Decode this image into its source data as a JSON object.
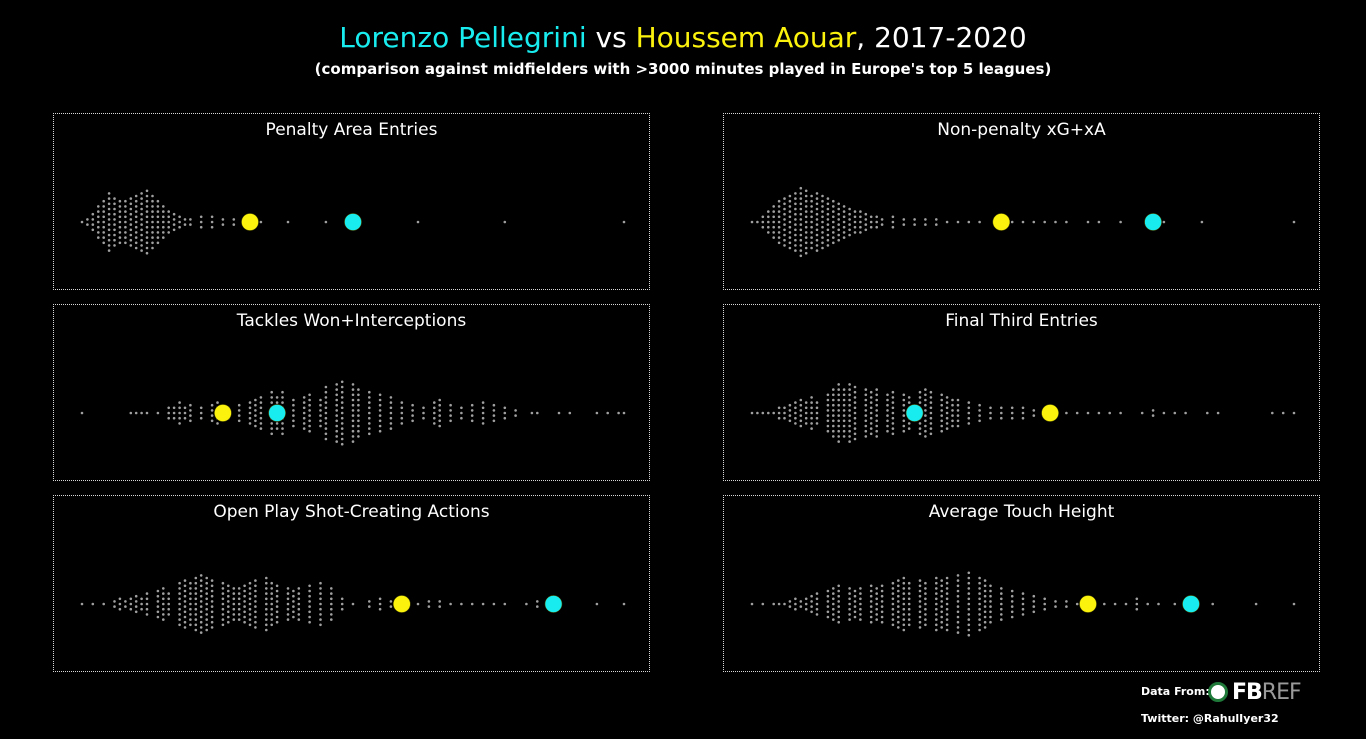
{
  "header": {
    "player1": "Lorenzo Pellegrini",
    "vs": " vs ",
    "player2": "Houssem Aouar",
    "suffix": ", 2017-2020",
    "subtitle": "(comparison against midfielders with >3000 minutes played in Europe's top 5 leagues)"
  },
  "colors": {
    "player1": "#19ecef",
    "player2": "#fbf20d",
    "dots": "#a0a0a0",
    "background": "#000000"
  },
  "chart_data": [
    {
      "type": "scatter",
      "title": "Penalty Area Entries",
      "player1_value": 0.5,
      "player2_value": 0.31,
      "distribution": [
        [
          0,
          1
        ],
        [
          0.01,
          2
        ],
        [
          0.02,
          4
        ],
        [
          0.03,
          7
        ],
        [
          0.04,
          9
        ],
        [
          0.05,
          12
        ],
        [
          0.06,
          10
        ],
        [
          0.07,
          9
        ],
        [
          0.08,
          9
        ],
        [
          0.09,
          10
        ],
        [
          0.1,
          11
        ],
        [
          0.11,
          12
        ],
        [
          0.12,
          13
        ],
        [
          0.13,
          11
        ],
        [
          0.14,
          9
        ],
        [
          0.15,
          7
        ],
        [
          0.16,
          5
        ],
        [
          0.17,
          4
        ],
        [
          0.18,
          3
        ],
        [
          0.19,
          2
        ],
        [
          0.2,
          2
        ],
        [
          0.22,
          3
        ],
        [
          0.24,
          3
        ],
        [
          0.26,
          2
        ],
        [
          0.28,
          2
        ],
        [
          0.3,
          1
        ],
        [
          0.33,
          1
        ],
        [
          0.38,
          1
        ],
        [
          0.45,
          1
        ],
        [
          0.62,
          1
        ],
        [
          0.78,
          1
        ],
        [
          1,
          1
        ]
      ]
    },
    {
      "type": "scatter",
      "title": "Non-penalty xG+xA",
      "player1_value": 0.74,
      "player2_value": 0.46,
      "distribution": [
        [
          0,
          1
        ],
        [
          0.01,
          1
        ],
        [
          0.02,
          3
        ],
        [
          0.03,
          5
        ],
        [
          0.04,
          7
        ],
        [
          0.05,
          9
        ],
        [
          0.06,
          10
        ],
        [
          0.07,
          11
        ],
        [
          0.08,
          12
        ],
        [
          0.09,
          14
        ],
        [
          0.1,
          13
        ],
        [
          0.11,
          11
        ],
        [
          0.12,
          12
        ],
        [
          0.13,
          11
        ],
        [
          0.14,
          10
        ],
        [
          0.15,
          9
        ],
        [
          0.16,
          8
        ],
        [
          0.17,
          7
        ],
        [
          0.18,
          6
        ],
        [
          0.19,
          5
        ],
        [
          0.2,
          5
        ],
        [
          0.21,
          4
        ],
        [
          0.22,
          3
        ],
        [
          0.23,
          3
        ],
        [
          0.24,
          2
        ],
        [
          0.26,
          3
        ],
        [
          0.28,
          2
        ],
        [
          0.3,
          2
        ],
        [
          0.32,
          2
        ],
        [
          0.34,
          2
        ],
        [
          0.36,
          1
        ],
        [
          0.38,
          1
        ],
        [
          0.4,
          1
        ],
        [
          0.42,
          1
        ],
        [
          0.48,
          1
        ],
        [
          0.5,
          1
        ],
        [
          0.52,
          1
        ],
        [
          0.54,
          1
        ],
        [
          0.56,
          1
        ],
        [
          0.58,
          1
        ],
        [
          0.62,
          1
        ],
        [
          0.64,
          1
        ],
        [
          0.68,
          1
        ],
        [
          0.76,
          1
        ],
        [
          0.83,
          1
        ],
        [
          1,
          1
        ]
      ]
    },
    {
      "type": "scatter",
      "title": "Tackles Won+Interceptions",
      "player1_value": 0.36,
      "player2_value": 0.26,
      "distribution": [
        [
          0,
          1
        ],
        [
          0.09,
          1
        ],
        [
          0.1,
          1
        ],
        [
          0.11,
          1
        ],
        [
          0.12,
          1
        ],
        [
          0.14,
          1
        ],
        [
          0.16,
          3
        ],
        [
          0.17,
          3
        ],
        [
          0.18,
          5
        ],
        [
          0.19,
          3
        ],
        [
          0.2,
          4
        ],
        [
          0.22,
          3
        ],
        [
          0.24,
          4
        ],
        [
          0.25,
          5
        ],
        [
          0.27,
          3
        ],
        [
          0.29,
          4
        ],
        [
          0.31,
          5
        ],
        [
          0.32,
          6
        ],
        [
          0.33,
          7
        ],
        [
          0.35,
          9
        ],
        [
          0.36,
          7
        ],
        [
          0.37,
          9
        ],
        [
          0.39,
          6
        ],
        [
          0.41,
          7
        ],
        [
          0.42,
          8
        ],
        [
          0.44,
          6
        ],
        [
          0.45,
          11
        ],
        [
          0.47,
          12
        ],
        [
          0.48,
          13
        ],
        [
          0.5,
          12
        ],
        [
          0.51,
          10
        ],
        [
          0.53,
          9
        ],
        [
          0.55,
          8
        ],
        [
          0.57,
          7
        ],
        [
          0.59,
          5
        ],
        [
          0.61,
          4
        ],
        [
          0.63,
          3
        ],
        [
          0.65,
          5
        ],
        [
          0.66,
          6
        ],
        [
          0.68,
          4
        ],
        [
          0.7,
          3
        ],
        [
          0.72,
          4
        ],
        [
          0.74,
          5
        ],
        [
          0.76,
          4
        ],
        [
          0.78,
          3
        ],
        [
          0.8,
          2
        ],
        [
          0.83,
          1
        ],
        [
          0.84,
          1
        ],
        [
          0.88,
          1
        ],
        [
          0.9,
          1
        ],
        [
          0.95,
          1
        ],
        [
          0.97,
          1
        ],
        [
          0.99,
          1
        ],
        [
          1,
          1
        ]
      ]
    },
    {
      "type": "scatter",
      "title": "Final Third Entries",
      "player1_value": 0.3,
      "player2_value": 0.55,
      "distribution": [
        [
          0,
          1
        ],
        [
          0.01,
          1
        ],
        [
          0.02,
          1
        ],
        [
          0.03,
          1
        ],
        [
          0.04,
          1
        ],
        [
          0.05,
          3
        ],
        [
          0.06,
          3
        ],
        [
          0.07,
          4
        ],
        [
          0.08,
          5
        ],
        [
          0.09,
          6
        ],
        [
          0.1,
          5
        ],
        [
          0.11,
          7
        ],
        [
          0.12,
          5
        ],
        [
          0.14,
          8
        ],
        [
          0.15,
          10
        ],
        [
          0.16,
          12
        ],
        [
          0.17,
          10
        ],
        [
          0.18,
          12
        ],
        [
          0.19,
          11
        ],
        [
          0.21,
          10
        ],
        [
          0.22,
          9
        ],
        [
          0.23,
          10
        ],
        [
          0.25,
          8
        ],
        [
          0.26,
          9
        ],
        [
          0.28,
          8
        ],
        [
          0.29,
          7
        ],
        [
          0.31,
          9
        ],
        [
          0.32,
          10
        ],
        [
          0.33,
          9
        ],
        [
          0.35,
          8
        ],
        [
          0.36,
          7
        ],
        [
          0.37,
          6
        ],
        [
          0.38,
          6
        ],
        [
          0.4,
          5
        ],
        [
          0.42,
          4
        ],
        [
          0.44,
          3
        ],
        [
          0.46,
          3
        ],
        [
          0.48,
          3
        ],
        [
          0.5,
          3
        ],
        [
          0.52,
          2
        ],
        [
          0.54,
          1
        ],
        [
          0.56,
          1
        ],
        [
          0.58,
          1
        ],
        [
          0.6,
          1
        ],
        [
          0.62,
          1
        ],
        [
          0.64,
          1
        ],
        [
          0.66,
          1
        ],
        [
          0.68,
          1
        ],
        [
          0.72,
          1
        ],
        [
          0.74,
          2
        ],
        [
          0.76,
          1
        ],
        [
          0.78,
          1
        ],
        [
          0.8,
          1
        ],
        [
          0.84,
          1
        ],
        [
          0.86,
          1
        ],
        [
          0.96,
          1
        ],
        [
          0.98,
          1
        ],
        [
          1,
          1
        ]
      ]
    },
    {
      "type": "scatter",
      "title": "Open Play Shot-Creating Actions",
      "player1_value": 0.87,
      "player2_value": 0.59,
      "distribution": [
        [
          0,
          1
        ],
        [
          0.02,
          1
        ],
        [
          0.04,
          1
        ],
        [
          0.06,
          2
        ],
        [
          0.07,
          3
        ],
        [
          0.08,
          2
        ],
        [
          0.09,
          3
        ],
        [
          0.1,
          4
        ],
        [
          0.11,
          3
        ],
        [
          0.12,
          5
        ],
        [
          0.14,
          6
        ],
        [
          0.15,
          7
        ],
        [
          0.16,
          5
        ],
        [
          0.18,
          9
        ],
        [
          0.19,
          10
        ],
        [
          0.2,
          9
        ],
        [
          0.21,
          11
        ],
        [
          0.22,
          12
        ],
        [
          0.23,
          11
        ],
        [
          0.24,
          10
        ],
        [
          0.26,
          9
        ],
        [
          0.27,
          8
        ],
        [
          0.28,
          7
        ],
        [
          0.29,
          7
        ],
        [
          0.3,
          8
        ],
        [
          0.31,
          9
        ],
        [
          0.32,
          10
        ],
        [
          0.34,
          11
        ],
        [
          0.35,
          9
        ],
        [
          0.36,
          8
        ],
        [
          0.38,
          7
        ],
        [
          0.39,
          6
        ],
        [
          0.4,
          7
        ],
        [
          0.42,
          8
        ],
        [
          0.44,
          9
        ],
        [
          0.46,
          7
        ],
        [
          0.48,
          3
        ],
        [
          0.5,
          1
        ],
        [
          0.53,
          2
        ],
        [
          0.55,
          3
        ],
        [
          0.57,
          2
        ],
        [
          0.6,
          1
        ],
        [
          0.62,
          1
        ],
        [
          0.64,
          2
        ],
        [
          0.66,
          2
        ],
        [
          0.68,
          1
        ],
        [
          0.7,
          1
        ],
        [
          0.72,
          1
        ],
        [
          0.74,
          1
        ],
        [
          0.76,
          1
        ],
        [
          0.78,
          1
        ],
        [
          0.82,
          1
        ],
        [
          0.84,
          2
        ],
        [
          0.86,
          1
        ],
        [
          0.95,
          1
        ],
        [
          1,
          1
        ]
      ]
    },
    {
      "type": "scatter",
      "title": "Average Touch Height",
      "player1_value": 0.81,
      "player2_value": 0.62,
      "distribution": [
        [
          0,
          1
        ],
        [
          0.02,
          1
        ],
        [
          0.04,
          1
        ],
        [
          0.05,
          1
        ],
        [
          0.06,
          1
        ],
        [
          0.07,
          2
        ],
        [
          0.08,
          3
        ],
        [
          0.09,
          2
        ],
        [
          0.1,
          3
        ],
        [
          0.11,
          4
        ],
        [
          0.12,
          5
        ],
        [
          0.14,
          6
        ],
        [
          0.15,
          7
        ],
        [
          0.16,
          8
        ],
        [
          0.18,
          7
        ],
        [
          0.19,
          6
        ],
        [
          0.2,
          7
        ],
        [
          0.22,
          8
        ],
        [
          0.23,
          7
        ],
        [
          0.24,
          8
        ],
        [
          0.26,
          9
        ],
        [
          0.27,
          10
        ],
        [
          0.28,
          11
        ],
        [
          0.29,
          9
        ],
        [
          0.31,
          10
        ],
        [
          0.32,
          9
        ],
        [
          0.34,
          11
        ],
        [
          0.35,
          10
        ],
        [
          0.36,
          11
        ],
        [
          0.38,
          12
        ],
        [
          0.4,
          13
        ],
        [
          0.42,
          11
        ],
        [
          0.43,
          10
        ],
        [
          0.44,
          8
        ],
        [
          0.46,
          7
        ],
        [
          0.48,
          6
        ],
        [
          0.5,
          5
        ],
        [
          0.52,
          4
        ],
        [
          0.54,
          3
        ],
        [
          0.56,
          2
        ],
        [
          0.58,
          2
        ],
        [
          0.6,
          1
        ],
        [
          0.63,
          2
        ],
        [
          0.65,
          1
        ],
        [
          0.67,
          1
        ],
        [
          0.69,
          1
        ],
        [
          0.71,
          3
        ],
        [
          0.73,
          1
        ],
        [
          0.75,
          1
        ],
        [
          0.78,
          1
        ],
        [
          0.8,
          1
        ],
        [
          0.85,
          1
        ],
        [
          0.93,
          1
        ],
        [
          1,
          1
        ]
      ]
    }
  ],
  "footer": {
    "data_from": "Data From:",
    "logo_fb": "FB",
    "logo_ref": "REF",
    "twitter": "Twitter: @RahulIyer32"
  }
}
